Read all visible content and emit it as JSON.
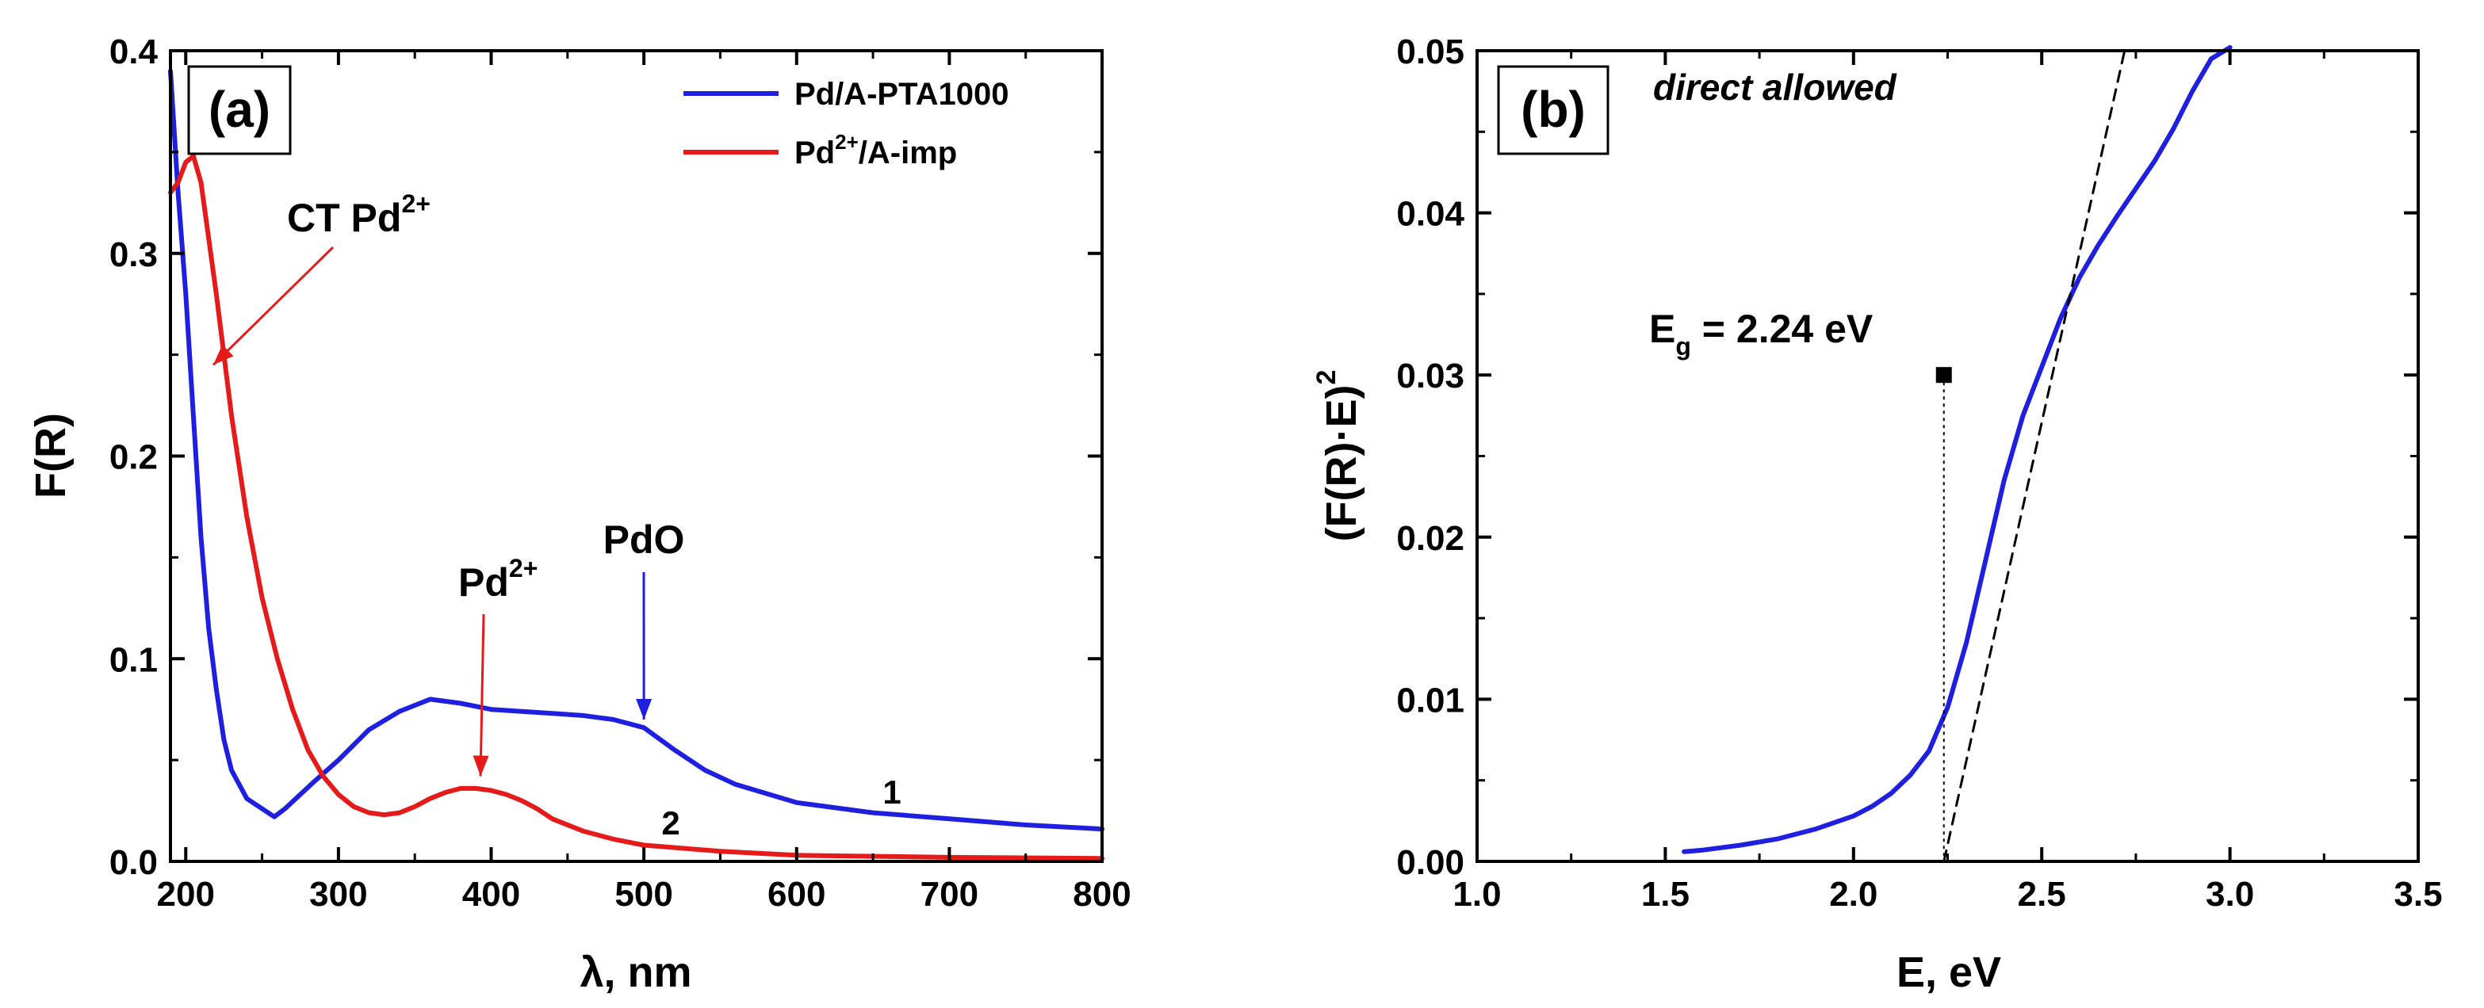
{
  "chart_data": [
    {
      "panel": "(a)",
      "type": "line",
      "xlabel": "λ, nm",
      "ylabel": "F(R)",
      "xlim": [
        190,
        800
      ],
      "ylim": [
        0,
        0.4
      ],
      "xticks": [
        200,
        300,
        400,
        500,
        600,
        700,
        800
      ],
      "xtick_labels": [
        "200",
        "300",
        "400",
        "500",
        "600",
        "700",
        "800"
      ],
      "yticks": [
        0.0,
        0.1,
        0.2,
        0.3,
        0.4
      ],
      "ytick_labels": [
        "0.0",
        "0.1",
        "0.2",
        "0.3",
        "0.4"
      ],
      "legend_position": "top-right",
      "series": [
        {
          "name": "Pd/A-PTA1000",
          "legend_main": "Pd/A-PTA1000",
          "color": "#1f1fe0",
          "curve_label": "1",
          "x": [
            190,
            195,
            200,
            205,
            210,
            215,
            220,
            225,
            230,
            240,
            250,
            258,
            265,
            275,
            285,
            300,
            320,
            340,
            360,
            380,
            400,
            420,
            440,
            460,
            480,
            500,
            520,
            540,
            560,
            600,
            650,
            700,
            750,
            800
          ],
          "y": [
            0.39,
            0.33,
            0.28,
            0.22,
            0.16,
            0.115,
            0.085,
            0.06,
            0.045,
            0.031,
            0.026,
            0.022,
            0.026,
            0.033,
            0.04,
            0.05,
            0.065,
            0.074,
            0.08,
            0.078,
            0.075,
            0.074,
            0.073,
            0.072,
            0.07,
            0.066,
            0.055,
            0.045,
            0.038,
            0.029,
            0.024,
            0.021,
            0.018,
            0.016
          ]
        },
        {
          "name": "Pd2+/A-imp",
          "legend_main": "Pd",
          "legend_sup": "2+",
          "legend_rest": "/A-imp",
          "color": "#e51b1b",
          "curve_label": "2",
          "x": [
            190,
            195,
            200,
            205,
            210,
            220,
            230,
            240,
            250,
            260,
            270,
            280,
            290,
            300,
            310,
            320,
            330,
            340,
            350,
            360,
            370,
            380,
            390,
            400,
            410,
            420,
            430,
            440,
            460,
            480,
            500,
            550,
            600,
            700,
            800
          ],
          "y": [
            0.33,
            0.335,
            0.345,
            0.348,
            0.335,
            0.28,
            0.22,
            0.17,
            0.13,
            0.1,
            0.075,
            0.055,
            0.042,
            0.033,
            0.027,
            0.024,
            0.023,
            0.024,
            0.027,
            0.031,
            0.034,
            0.036,
            0.036,
            0.035,
            0.033,
            0.03,
            0.026,
            0.021,
            0.015,
            0.011,
            0.008,
            0.005,
            0.003,
            0.002,
            0.0015
          ]
        }
      ],
      "annotations": [
        {
          "text_main": "CT  Pd",
          "text_sup": "2+",
          "arrow_to": [
            218,
            0.245
          ],
          "color": "#e51b1b"
        },
        {
          "text_main": "Pd",
          "text_sup": "2+",
          "arrow_to": [
            393,
            0.042
          ],
          "color": "#e51b1b"
        },
        {
          "text_main": "PdO",
          "arrow_to": [
            500,
            0.07
          ],
          "color": "#1f1fe0"
        }
      ]
    },
    {
      "panel": "(b)",
      "type": "line",
      "xlabel": "E, eV",
      "ylabel_main": "(F(R)·E)",
      "ylabel_sup": "2",
      "xlim": [
        1.0,
        3.5
      ],
      "ylim": [
        0,
        0.05
      ],
      "xticks": [
        1.0,
        1.5,
        2.0,
        2.5,
        3.0,
        3.5
      ],
      "xtick_labels": [
        "1.0",
        "1.5",
        "2.0",
        "2.5",
        "3.0",
        "3.5"
      ],
      "yticks": [
        0.0,
        0.01,
        0.02,
        0.03,
        0.04,
        0.05
      ],
      "ytick_labels": [
        "0.00",
        "0.01",
        "0.02",
        "0.03",
        "0.04",
        "0.05"
      ],
      "note": "direct allowed",
      "series": [
        {
          "name": "(F(R)·E)^2",
          "color": "#1f1fe0",
          "x": [
            1.55,
            1.6,
            1.7,
            1.8,
            1.9,
            2.0,
            2.05,
            2.1,
            2.15,
            2.2,
            2.25,
            2.3,
            2.35,
            2.4,
            2.45,
            2.5,
            2.55,
            2.6,
            2.65,
            2.7,
            2.75,
            2.8,
            2.85,
            2.9,
            2.95,
            3.0
          ],
          "y": [
            0.0006,
            0.0007,
            0.001,
            0.0014,
            0.002,
            0.0028,
            0.0034,
            0.0042,
            0.0053,
            0.0068,
            0.0095,
            0.0135,
            0.0185,
            0.0235,
            0.0275,
            0.0305,
            0.0335,
            0.036,
            0.038,
            0.0398,
            0.0415,
            0.0432,
            0.0452,
            0.0475,
            0.0495,
            0.0502
          ]
        },
        {
          "name": "tangent",
          "color": "#000000",
          "style": "dashed",
          "x": [
            2.24,
            2.72
          ],
          "y": [
            0.0,
            0.05
          ]
        }
      ],
      "annotations": [
        {
          "text": "E_g = 2.24 eV",
          "text_main": "E",
          "text_sub": "g",
          "text_rest": " = 2.24 eV",
          "point": [
            2.24,
            0.03
          ]
        }
      ]
    }
  ]
}
